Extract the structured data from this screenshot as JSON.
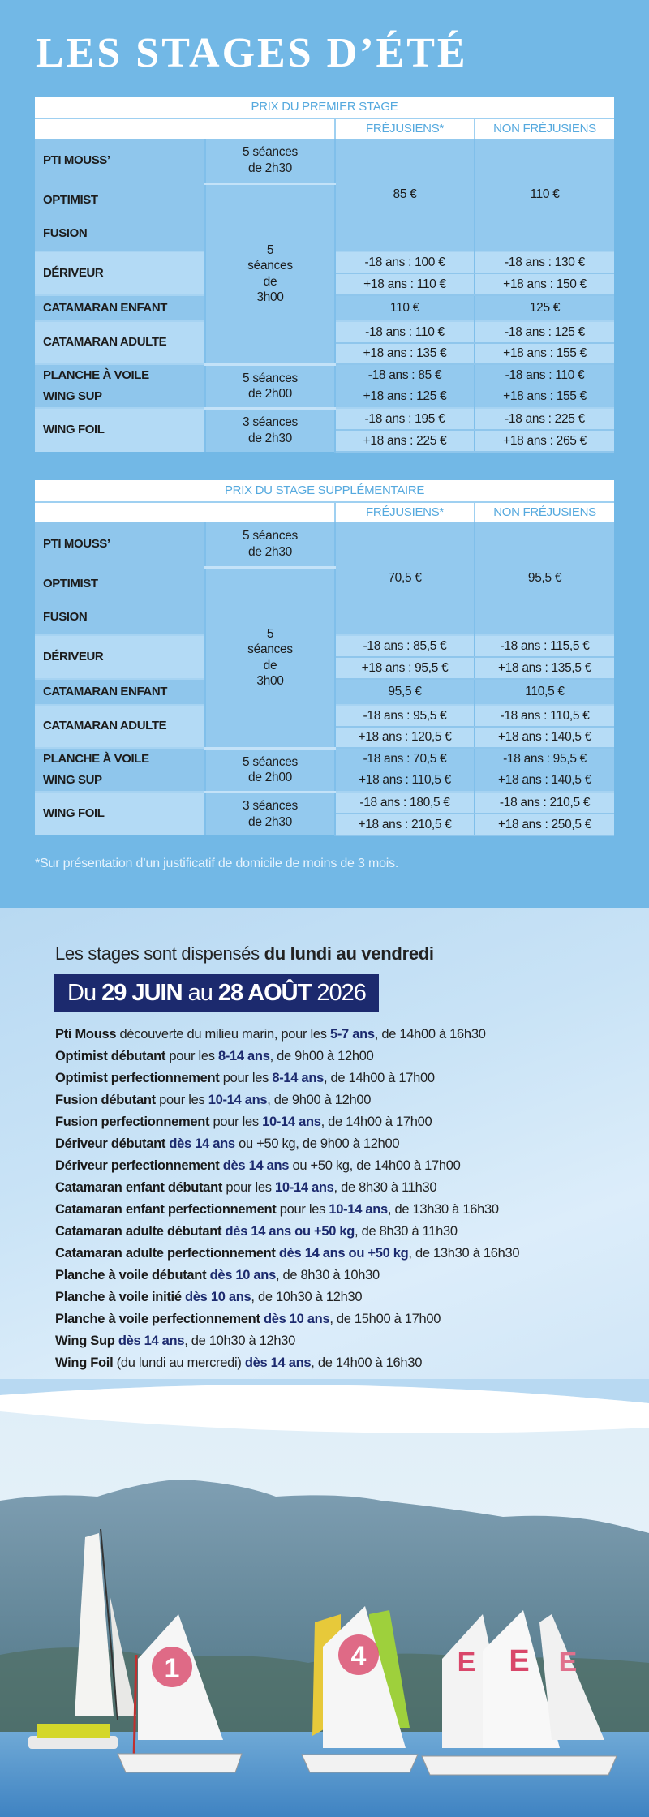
{
  "title": "LES STAGES D’ÉTÉ",
  "colors": {
    "background": "#72b8e6",
    "header_text": "#55a9de",
    "cell": "#93c9ee",
    "cell_light": "#b6dcf6",
    "date_box": "#1c2a6e"
  },
  "tables": [
    {
      "title": "PRIX DU PREMIER STAGE",
      "col_fr": "FRÉJUSIENS*",
      "col_nonfr": "NON FRÉJUSIENS",
      "groups": {
        "pti_mouss": "PTI MOUSS’",
        "optimist": "OPTIMIST",
        "fusion": "FUSION",
        "deriveur": "DÉRIVEUR",
        "cat_enfant": "CATAMARAN ENFANT",
        "cat_adulte": "CATAMARAN ADULTE",
        "planche": "PLANCHE À VOILE",
        "wing_sup": "WING SUP",
        "wing_foil": "WING FOIL"
      },
      "durations": {
        "pti_mouss": "5 séances de 2h30",
        "main": "5 séances de 3h00",
        "planche": "5 séances de 2h00",
        "wing_foil": "3 séances de 2h30"
      },
      "prices": {
        "base": [
          "85 €",
          "110 €"
        ],
        "deriveur": [
          [
            "-18 ans : 100 €",
            "-18 ans : 130 €"
          ],
          [
            "+18 ans : 110 €",
            "+18 ans : 150 €"
          ]
        ],
        "cat_enfant": [
          "110 €",
          "125 €"
        ],
        "cat_adulte": [
          [
            "-18 ans : 110 €",
            "-18 ans : 125 €"
          ],
          [
            "+18 ans : 135 €",
            "+18 ans : 155 €"
          ]
        ],
        "planche": [
          [
            "-18 ans : 85 €",
            "-18 ans : 110 €"
          ],
          [
            "+18 ans : 125 €",
            "+18 ans : 155 €"
          ]
        ],
        "wing_foil": [
          [
            "-18 ans : 195 €",
            "-18 ans : 225 €"
          ],
          [
            "+18 ans : 225 €",
            "+18 ans : 265 €"
          ]
        ]
      }
    },
    {
      "title": "PRIX DU STAGE SUPPLÉMENTAIRE",
      "col_fr": "FRÉJUSIENS*",
      "col_nonfr": "NON FRÉJUSIENS",
      "groups": {
        "pti_mouss": "PTI MOUSS’",
        "optimist": "OPTIMIST",
        "fusion": "FUSION",
        "deriveur": "DÉRIVEUR",
        "cat_enfant": "CATAMARAN ENFANT",
        "cat_adulte": "CATAMARAN ADULTE",
        "planche": "PLANCHE À VOILE",
        "wing_sup": "WING SUP",
        "wing_foil": "WING FOIL"
      },
      "durations": {
        "pti_mouss": "5 séances de 2h30",
        "main": "5 séances de 3h00",
        "planche": "5 séances de 2h00",
        "wing_foil": "3 séances de 2h30"
      },
      "prices": {
        "base": [
          "70,5 €",
          "95,5 €"
        ],
        "deriveur": [
          [
            "-18 ans : 85,5 €",
            "-18 ans : 115,5 €"
          ],
          [
            "+18 ans : 95,5 €",
            "+18 ans : 135,5 €"
          ]
        ],
        "cat_enfant": [
          "95,5 €",
          "110,5 €"
        ],
        "cat_adulte": [
          [
            "-18 ans : 95,5 €",
            "-18 ans : 110,5 €"
          ],
          [
            "+18 ans : 120,5 €",
            "+18 ans : 140,5 €"
          ]
        ],
        "planche": [
          [
            "-18 ans : 70,5 €",
            "-18 ans : 95,5 €"
          ],
          [
            "+18 ans : 110,5 €",
            "+18 ans : 140,5 €"
          ]
        ],
        "wing_foil": [
          [
            "-18 ans : 180,5 €",
            "-18 ans : 210,5 €"
          ],
          [
            "+18 ans : 210,5 €",
            "+18 ans : 250,5 €"
          ]
        ]
      }
    }
  ],
  "footnote": "*Sur présentation d’un justificatif de domicile de moins de 3 mois.",
  "intro": {
    "regular": "Les stages sont dispensés ",
    "bold": "du lundi au vendredi"
  },
  "dates": {
    "du": "Du ",
    "start": "29 JUIN",
    "au": " au ",
    "end": "28 AOÛT",
    "year": " 2026"
  },
  "schedule": [
    [
      [
        "b",
        "Pti Mouss"
      ],
      [
        "r",
        " découverte du milieu marin, pour les "
      ],
      [
        "n",
        "5-7 ans"
      ],
      [
        "r",
        ", de 14h00 à 16h30"
      ]
    ],
    [
      [
        "b",
        "Optimist débutant"
      ],
      [
        "r",
        " pour les "
      ],
      [
        "n",
        "8-14 ans"
      ],
      [
        "r",
        ", de 9h00 à 12h00"
      ]
    ],
    [
      [
        "b",
        "Optimist perfectionnement"
      ],
      [
        "r",
        " pour les "
      ],
      [
        "n",
        "8-14 ans"
      ],
      [
        "r",
        ", de 14h00 à 17h00"
      ]
    ],
    [
      [
        "b",
        "Fusion débutant"
      ],
      [
        "r",
        " pour les "
      ],
      [
        "n",
        "10-14 ans"
      ],
      [
        "r",
        ", de 9h00 à 12h00"
      ]
    ],
    [
      [
        "b",
        "Fusion perfectionnement"
      ],
      [
        "r",
        " pour les "
      ],
      [
        "n",
        "10-14 ans"
      ],
      [
        "r",
        ", de 14h00 à 17h00"
      ]
    ],
    [
      [
        "b",
        "Dériveur débutant "
      ],
      [
        "n",
        "dès 14 ans"
      ],
      [
        "r",
        " ou +50 kg, de 9h00 à 12h00"
      ]
    ],
    [
      [
        "b",
        "Dériveur perfectionnement "
      ],
      [
        "n",
        "dès 14 ans"
      ],
      [
        "r",
        " ou +50 kg, de 14h00 à 17h00"
      ]
    ],
    [
      [
        "b",
        "Catamaran enfant débutant"
      ],
      [
        "r",
        " pour les "
      ],
      [
        "n",
        "10-14 ans"
      ],
      [
        "r",
        ", de 8h30 à 11h30"
      ]
    ],
    [
      [
        "b",
        "Catamaran enfant perfectionnement"
      ],
      [
        "r",
        " pour les "
      ],
      [
        "n",
        "10-14 ans"
      ],
      [
        "r",
        ", de 13h30 à 16h30"
      ]
    ],
    [
      [
        "b",
        "Catamaran adulte débutant "
      ],
      [
        "n",
        "dès 14 ans ou +50 kg"
      ],
      [
        "r",
        ", de 8h30 à 11h30"
      ]
    ],
    [
      [
        "b",
        "Catamaran adulte perfectionnement "
      ],
      [
        "n",
        "dès 14 ans ou +50 kg"
      ],
      [
        "r",
        ", de 13h30 à 16h30"
      ]
    ],
    [
      [
        "b",
        "Planche à voile débutant "
      ],
      [
        "n",
        "dès 10 ans"
      ],
      [
        "r",
        ", de 8h30 à 10h30"
      ]
    ],
    [
      [
        "b",
        "Planche à voile initié "
      ],
      [
        "n",
        "dès 10 ans"
      ],
      [
        "r",
        ", de 10h30 à 12h30"
      ]
    ],
    [
      [
        "b",
        "Planche à voile perfectionnement "
      ],
      [
        "n",
        "dès 10 ans"
      ],
      [
        "r",
        ", de 15h00 à 17h00"
      ]
    ],
    [
      [
        "b",
        "Wing Sup "
      ],
      [
        "n",
        "dès 14 ans"
      ],
      [
        "r",
        ", de 10h30 à 12h30"
      ]
    ],
    [
      [
        "b",
        "Wing Foil"
      ],
      [
        "r",
        " (du lundi au mercredi) "
      ],
      [
        "n",
        "dès 14 ans"
      ],
      [
        "r",
        ", de 14h00 à 16h30"
      ]
    ]
  ],
  "photo": {
    "subject": "sailing-dinghies-photo",
    "sail_numbers": [
      "1",
      "4",
      "E",
      "E"
    ]
  }
}
